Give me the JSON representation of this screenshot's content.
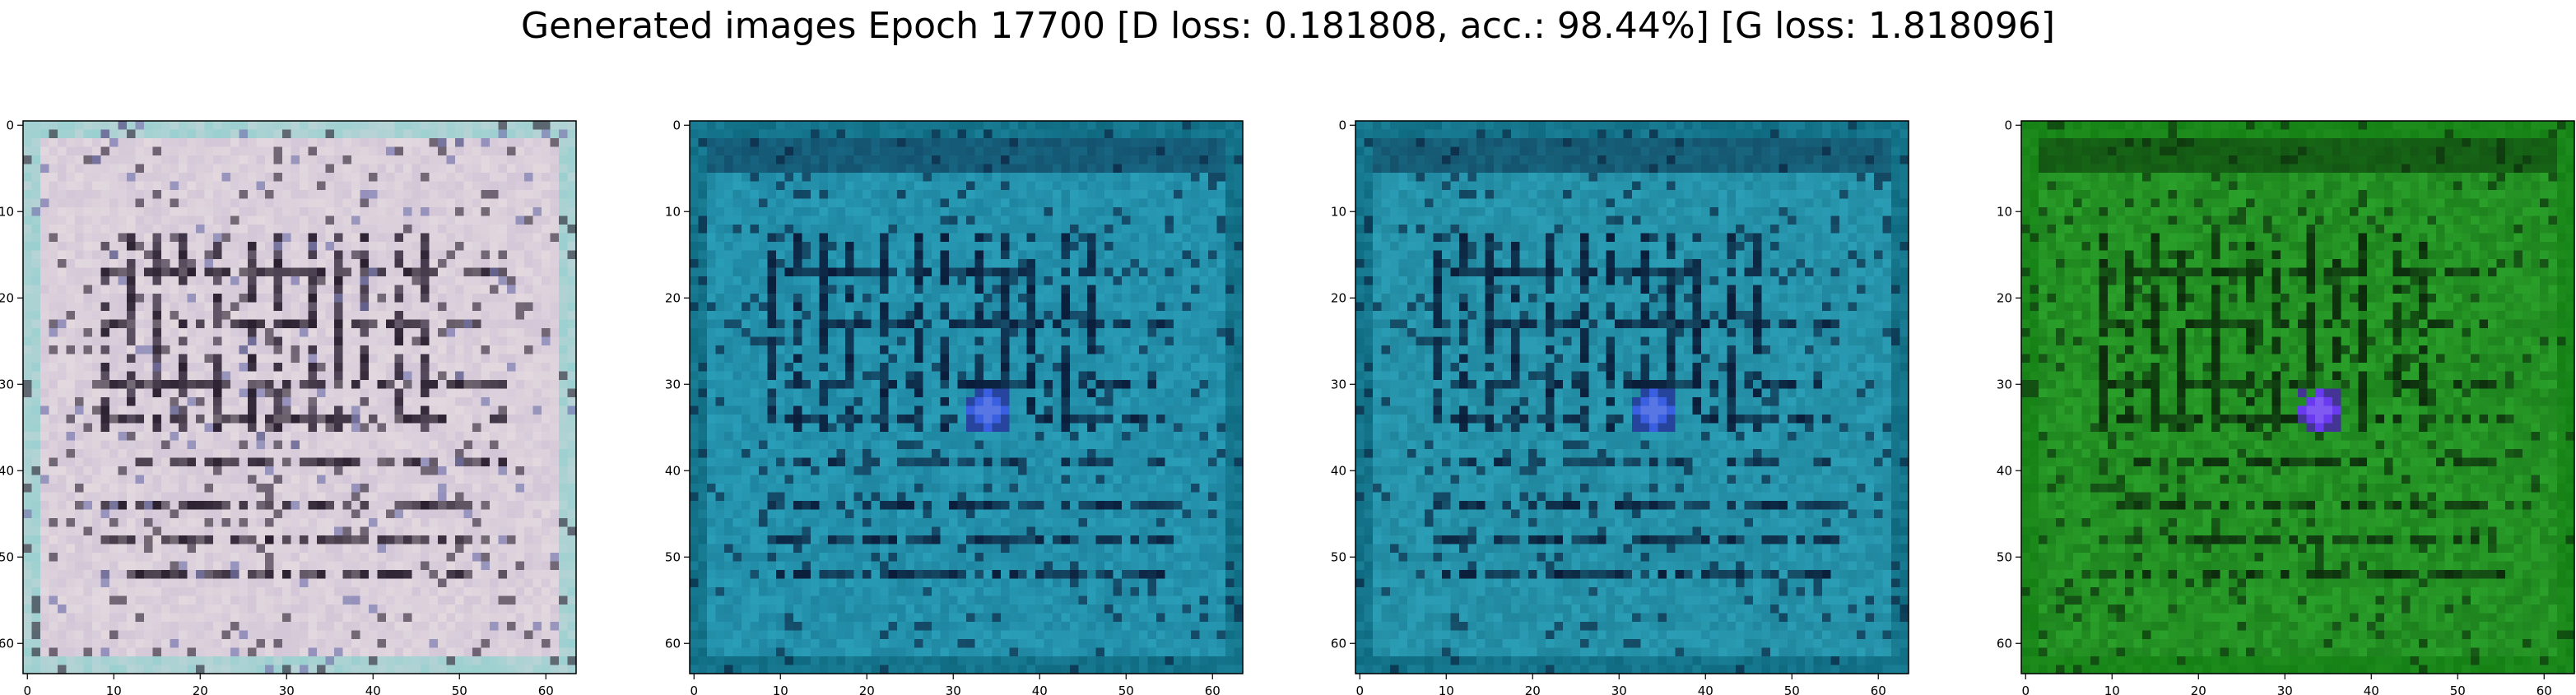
{
  "chart_data": {
    "type": "heatmap",
    "title": "Generated images Epoch 17700 [D loss: 0.181808, acc.: 98.44%] [G loss: 1.818096]",
    "xlim": [
      0,
      63
    ],
    "ylim": [
      63,
      0
    ],
    "x_ticks": [
      0,
      10,
      20,
      30,
      40,
      50,
      60
    ],
    "y_ticks": [
      0,
      10,
      20,
      30,
      40,
      50,
      60
    ],
    "grid": false,
    "panels": [
      {
        "id": "panel-1",
        "palette": "pale-pink-gray",
        "colors": {
          "base": "#e2d8de",
          "alt": "#cfc2d6",
          "dark": "#2a2030",
          "accent": "#7a7ab0",
          "frame": "#9bd0d0"
        },
        "blob": false
      },
      {
        "id": "panel-2",
        "palette": "teal",
        "colors": {
          "base": "#2a9eb8",
          "alt": "#1c7f9a",
          "dark": "#0a1c3a",
          "accent": "#3a5fe0",
          "frame": "#0f6a80"
        },
        "blob": true
      },
      {
        "id": "panel-3",
        "palette": "teal",
        "colors": {
          "base": "#2b9fb6",
          "alt": "#1d8098",
          "dark": "#0a1c38",
          "accent": "#3a5fe0",
          "frame": "#0f6a80"
        },
        "blob": true
      },
      {
        "id": "panel-4",
        "palette": "green",
        "colors": {
          "base": "#2aa02a",
          "alt": "#1a7a1a",
          "dark": "#0c2a0c",
          "accent": "#6a3af0",
          "frame": "#158015"
        },
        "blob": true
      }
    ]
  }
}
